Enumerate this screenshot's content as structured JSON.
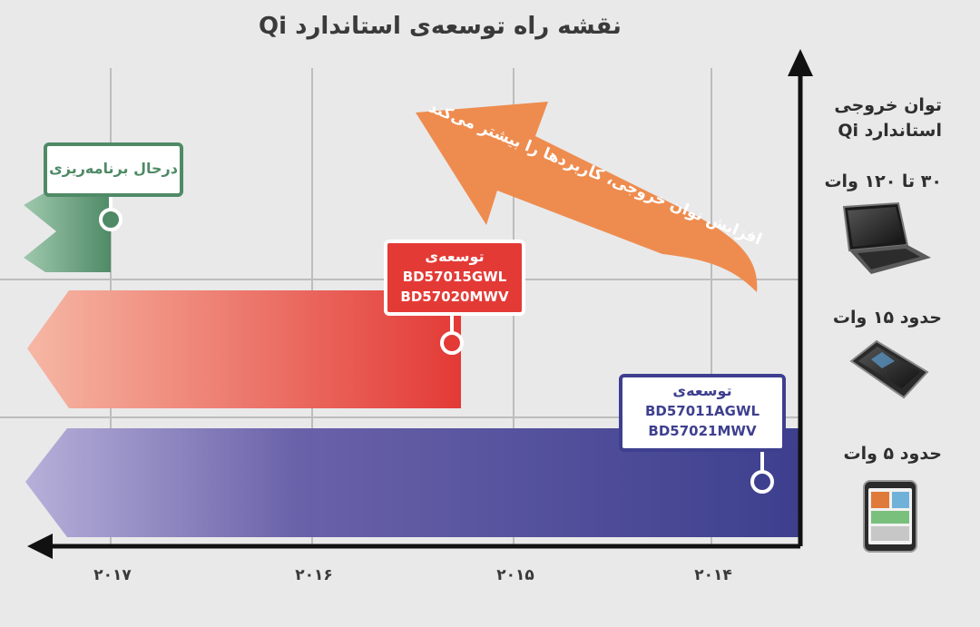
{
  "title": "نقشه راه توسعه‌ی استاندارد Qi",
  "y_axis_label": [
    "توان خروجی",
    "استاندارد Qi"
  ],
  "rows": [
    {
      "power_label": "۳۰ تا ۱۲۰ وات",
      "device": "laptop-icon"
    },
    {
      "power_label": "حدود ۱۵ وات",
      "device": "tablet-icon"
    },
    {
      "power_label": "حدود ۵ وات",
      "device": "smartphone-icon"
    }
  ],
  "years": [
    "۲۰۱۷",
    "۲۰۱۶",
    "۲۰۱۵",
    "۲۰۱۴"
  ],
  "tags": {
    "planning": {
      "label": "درحال برنامه‌ریزی"
    },
    "mid": {
      "label": "توسعه‌ی",
      "parts": [
        "BD57015GWL",
        "BD57020MWV"
      ]
    },
    "low": {
      "label": "توسعه‌ی",
      "parts": [
        "BD57011AGWL",
        "BD57021MWV"
      ]
    }
  },
  "trend_arrow_text": [
    "افزایش توان خروجی، کاربردها را بیشتر می‌کند"
  ],
  "colors": {
    "background": "#e9e9ea",
    "grid": "#bdbdbd",
    "axis": "#111111",
    "green": "#4f8a66",
    "red": "#e33a36",
    "blue": "#3e3f8f",
    "orange": "#ee8c4f"
  }
}
